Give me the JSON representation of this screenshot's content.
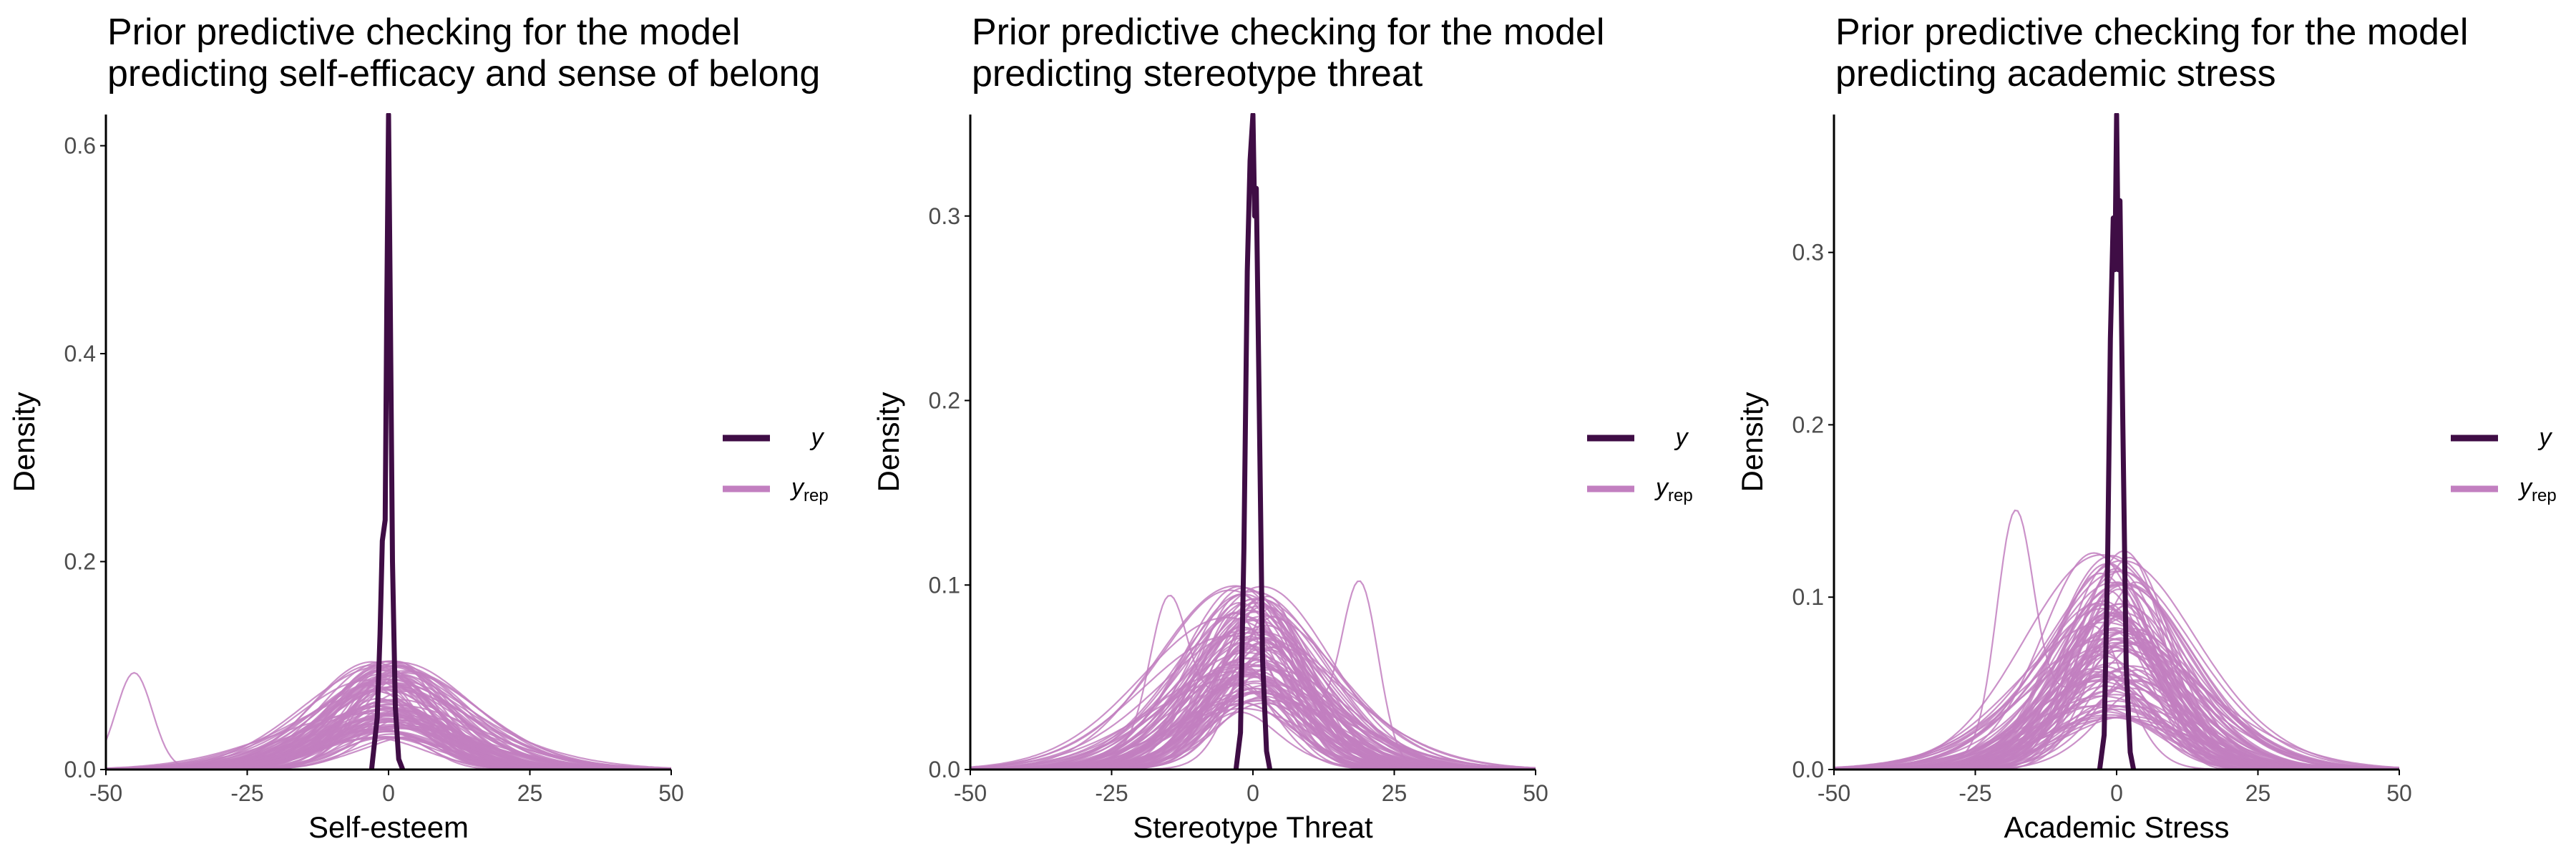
{
  "colors": {
    "y": "#3f0d45",
    "yrep": "#c27fc0",
    "axis": "#000000",
    "tick_text": "#4d4d4d"
  },
  "legend": {
    "y_label": "y",
    "yrep_label": "y",
    "yrep_subscript": "rep",
    "placement": "right"
  },
  "chart_data": [
    {
      "type": "line",
      "title": [
        "Prior predictive checking for the model",
        "predicting self-efficacy and sense of belong"
      ],
      "xlabel": "Self-esteem",
      "ylabel": "Density",
      "xlim": [
        -50,
        50
      ],
      "ylim": [
        0,
        0.63
      ],
      "xticks": [
        -50,
        -25,
        0,
        25,
        50
      ],
      "yticks": [
        0.0,
        0.2,
        0.4,
        0.6
      ],
      "ytick_labels": [
        "0.0",
        "0.2",
        "0.4",
        "0.6"
      ],
      "grid": false,
      "y_observed": {
        "name": "y",
        "points": [
          [
            -3.0,
            0.0
          ],
          [
            -2.0,
            0.05
          ],
          [
            -1.5,
            0.13
          ],
          [
            -1.1,
            0.22
          ],
          [
            -0.6,
            0.24
          ],
          [
            -0.3,
            0.45
          ],
          [
            0.0,
            0.63
          ],
          [
            0.3,
            0.45
          ],
          [
            0.7,
            0.2
          ],
          [
            1.2,
            0.06
          ],
          [
            1.8,
            0.01
          ],
          [
            2.5,
            0.0
          ]
        ]
      },
      "y_rep": {
        "name": "y_rep",
        "mean_sd_range": [
          7,
          15
        ],
        "peak_density_range": [
          0.03,
          0.105
        ],
        "outlier_peaks": [
          {
            "x": -45,
            "density": 0.093
          }
        ],
        "num_draws": 100
      }
    },
    {
      "type": "line",
      "title": [
        "Prior predictive checking for the model",
        "predicting stereotype threat"
      ],
      "xlabel": "Stereotype Threat",
      "ylabel": "Density",
      "xlim": [
        -50,
        50
      ],
      "ylim": [
        0,
        0.355
      ],
      "xticks": [
        -50,
        -25,
        0,
        25,
        50
      ],
      "yticks": [
        0.0,
        0.1,
        0.2,
        0.3
      ],
      "ytick_labels": [
        "0.0",
        "0.1",
        "0.2",
        "0.3"
      ],
      "grid": false,
      "y_observed": {
        "name": "y",
        "points": [
          [
            -3.0,
            0.0
          ],
          [
            -2.2,
            0.02
          ],
          [
            -1.6,
            0.12
          ],
          [
            -1.0,
            0.27
          ],
          [
            -0.5,
            0.33
          ],
          [
            0.0,
            0.355
          ],
          [
            0.3,
            0.3
          ],
          [
            0.6,
            0.315
          ],
          [
            1.1,
            0.2
          ],
          [
            1.7,
            0.06
          ],
          [
            2.4,
            0.01
          ],
          [
            3.0,
            0.0
          ]
        ]
      },
      "y_rep": {
        "name": "y_rep",
        "mean_sd_range": [
          7,
          15
        ],
        "peak_density_range": [
          0.03,
          0.1
        ],
        "outlier_peaks": [
          {
            "x": 19,
            "density": 0.092
          },
          {
            "x": -15,
            "density": 0.07
          }
        ],
        "num_draws": 100
      }
    },
    {
      "type": "line",
      "title": [
        "Prior predictive checking for the model",
        "predicting academic stress"
      ],
      "xlabel": "Academic Stress",
      "ylabel": "Density",
      "xlim": [
        -50,
        50
      ],
      "ylim": [
        0,
        0.38
      ],
      "xticks": [
        -50,
        -25,
        0,
        25,
        50
      ],
      "yticks": [
        0.0,
        0.1,
        0.2,
        0.3
      ],
      "ytick_labels": [
        "0.0",
        "0.1",
        "0.2",
        "0.3"
      ],
      "grid": false,
      "y_observed": {
        "name": "y",
        "points": [
          [
            -3.0,
            0.0
          ],
          [
            -2.2,
            0.02
          ],
          [
            -1.6,
            0.12
          ],
          [
            -1.1,
            0.25
          ],
          [
            -0.6,
            0.32
          ],
          [
            -0.3,
            0.29
          ],
          [
            0.0,
            0.38
          ],
          [
            0.3,
            0.29
          ],
          [
            0.6,
            0.33
          ],
          [
            1.1,
            0.2
          ],
          [
            1.7,
            0.06
          ],
          [
            2.4,
            0.01
          ],
          [
            3.0,
            0.0
          ]
        ]
      },
      "y_rep": {
        "name": "y_rep",
        "mean_sd_range": [
          7,
          15
        ],
        "peak_density_range": [
          0.03,
          0.13
        ],
        "outlier_peaks": [
          {
            "x": -18,
            "density": 0.127
          }
        ],
        "num_draws": 100
      }
    }
  ]
}
